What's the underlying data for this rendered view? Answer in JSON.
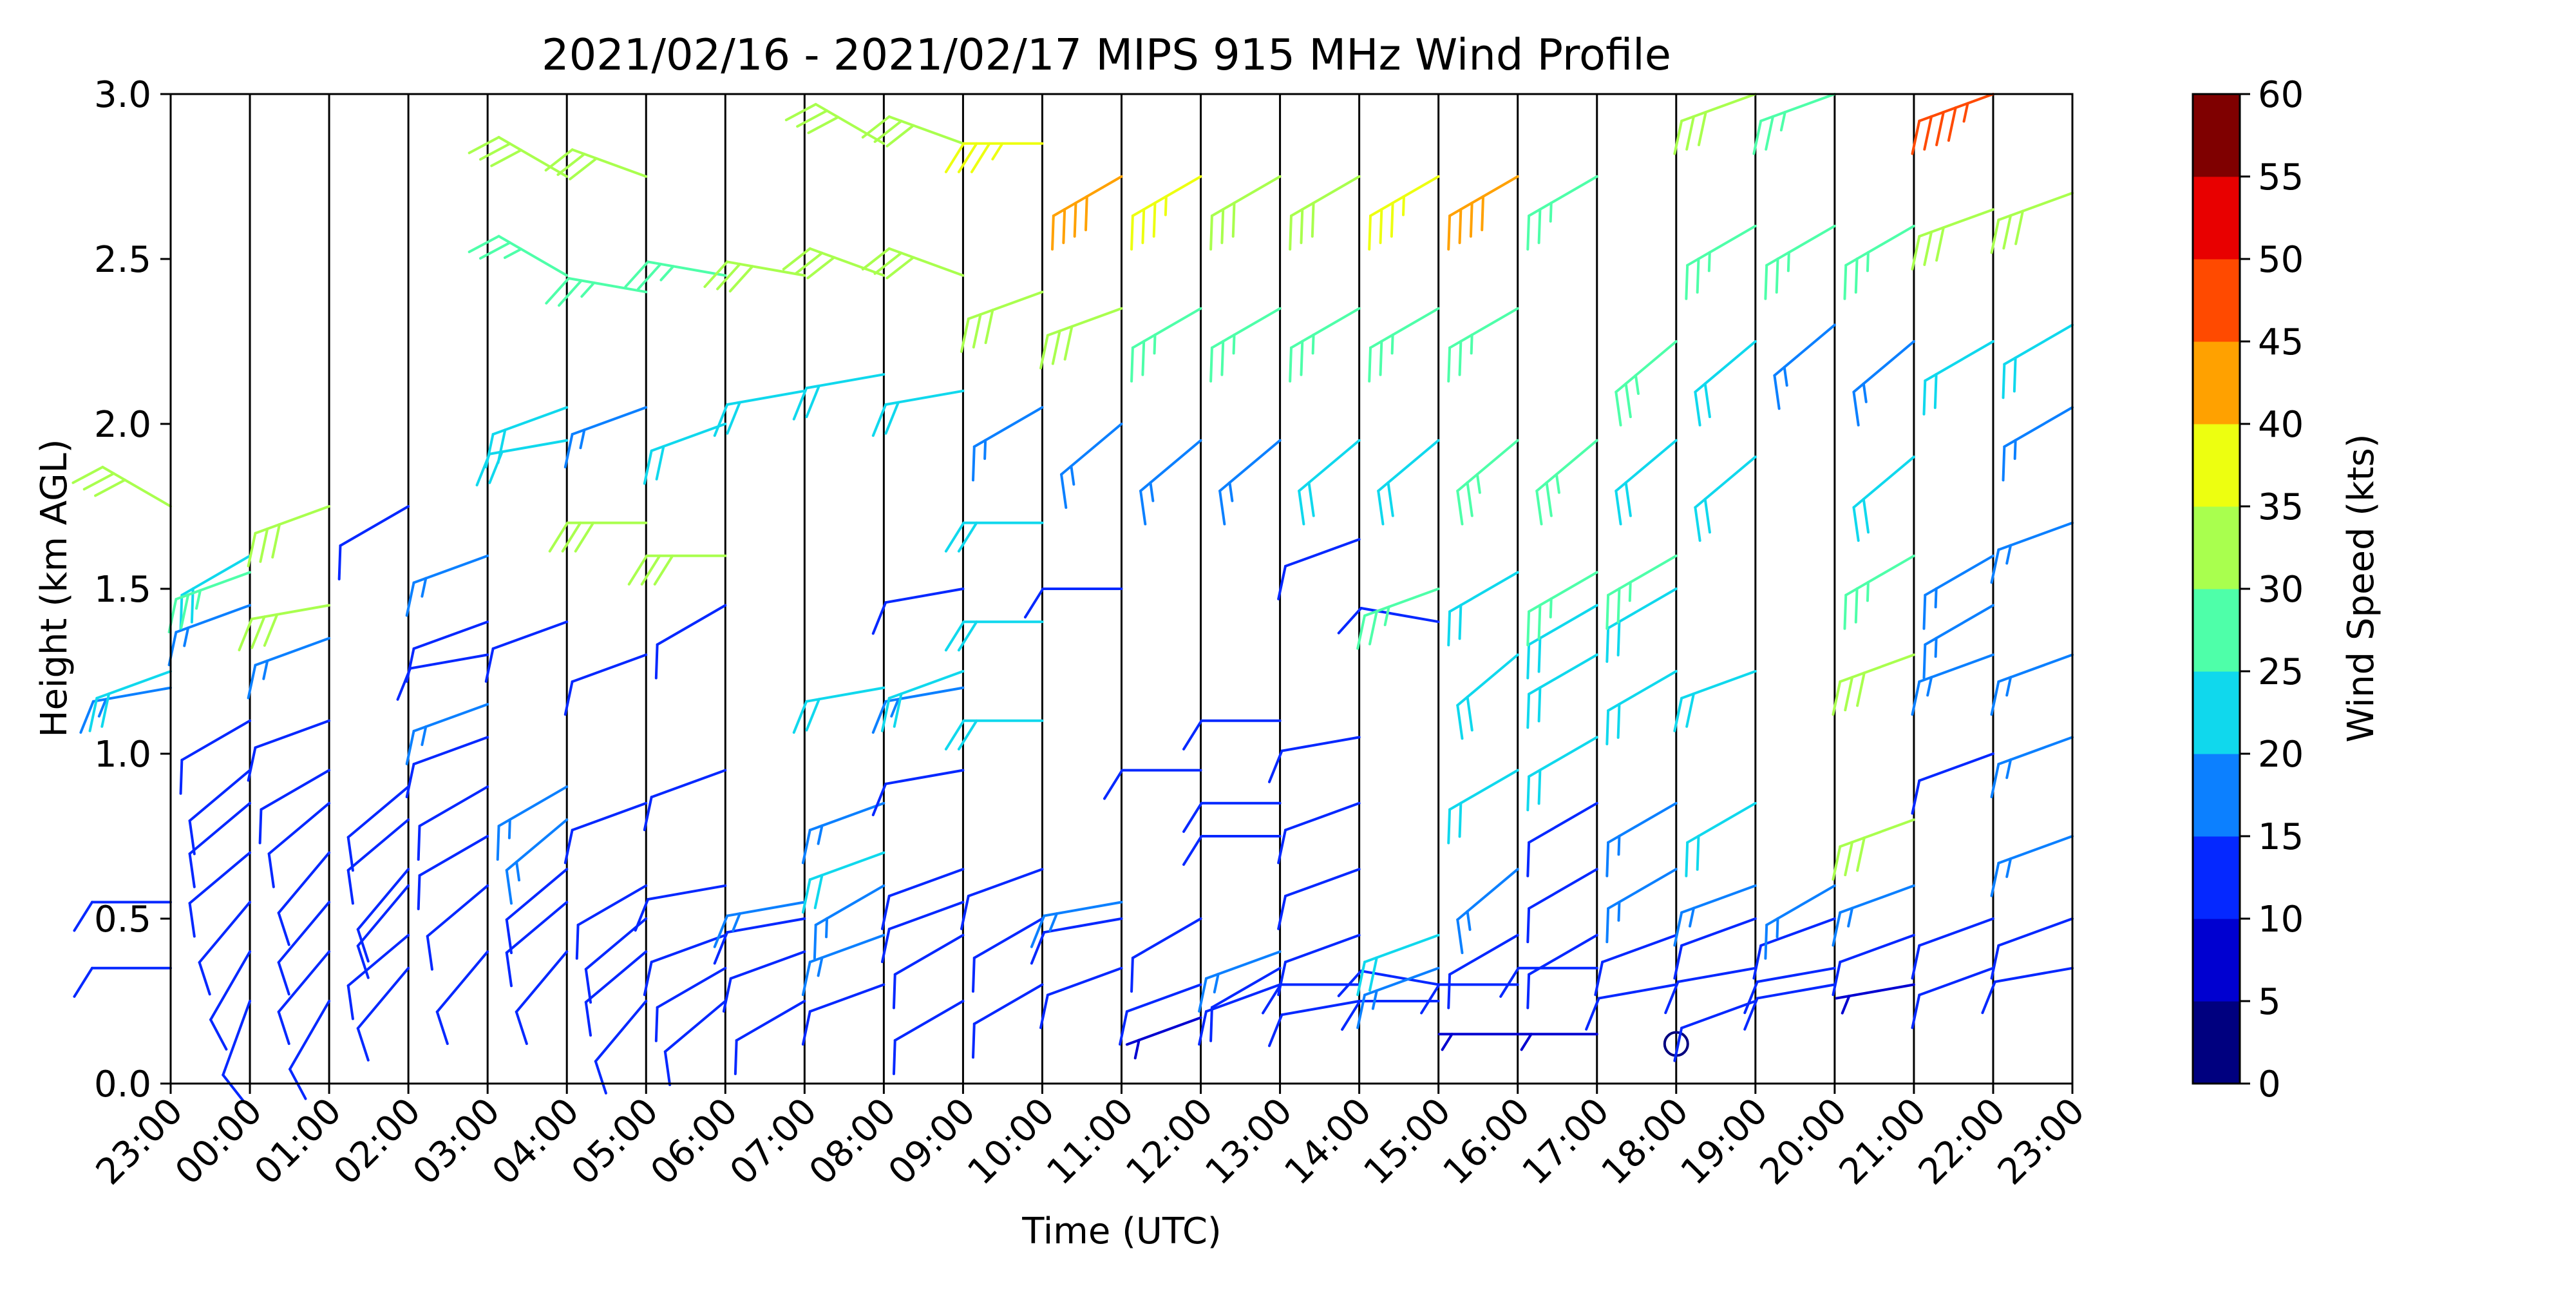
{
  "chart_data": {
    "type": "wind-barb-profile",
    "title": "2021/02/16 - 2021/02/17 MIPS 915 MHz Wind Profile",
    "xlabel": "Time (UTC)",
    "ylabel": "Height (km AGL)",
    "x_ticks": [
      "23:00",
      "00:00",
      "01:00",
      "02:00",
      "03:00",
      "04:00",
      "05:00",
      "06:00",
      "07:00",
      "08:00",
      "09:00",
      "10:00",
      "11:00",
      "12:00",
      "13:00",
      "14:00",
      "15:00",
      "16:00",
      "17:00",
      "18:00",
      "19:00",
      "20:00",
      "21:00",
      "22:00",
      "23:00"
    ],
    "y_ticks": [
      "0.0",
      "0.5",
      "1.0",
      "1.5",
      "2.0",
      "2.5",
      "3.0"
    ],
    "ylim": [
      0,
      3
    ],
    "colorbar": {
      "label": "Wind Speed (kts)",
      "ticks": [
        "0",
        "5",
        "10",
        "15",
        "20",
        "25",
        "30",
        "35",
        "40",
        "45",
        "50",
        "55",
        "60"
      ],
      "colors": [
        "#00007f",
        "#0000d0",
        "#0528ff",
        "#0c80ff",
        "#10d8ed",
        "#4effa9",
        "#a9ff4e",
        "#edff10",
        "#ffa100",
        "#ff4a00",
        "#e80000",
        "#7f0000"
      ]
    },
    "profiles": [
      {
        "t": 0,
        "obs": [
          [
            0.35,
            270,
            10
          ],
          [
            0.55,
            270,
            10
          ],
          [
            1.2,
            260,
            15
          ],
          [
            1.25,
            250,
            20
          ],
          [
            1.75,
            300,
            30
          ]
        ]
      },
      {
        "t": 1,
        "obs": [
          [
            0.25,
            200,
            10
          ],
          [
            0.4,
            210,
            10
          ],
          [
            0.55,
            220,
            10
          ],
          [
            0.7,
            230,
            10
          ],
          [
            0.85,
            230,
            10
          ],
          [
            0.95,
            230,
            10
          ],
          [
            1.1,
            240,
            10
          ],
          [
            1.45,
            250,
            15
          ],
          [
            1.6,
            240,
            20
          ],
          [
            1.55,
            250,
            25
          ]
        ]
      },
      {
        "t": 2,
        "obs": [
          [
            0.25,
            210,
            10
          ],
          [
            0.4,
            220,
            10
          ],
          [
            0.55,
            220,
            10
          ],
          [
            0.7,
            220,
            10
          ],
          [
            0.85,
            230,
            10
          ],
          [
            0.95,
            240,
            10
          ],
          [
            1.1,
            250,
            10
          ],
          [
            1.35,
            250,
            15
          ],
          [
            1.45,
            260,
            30
          ],
          [
            1.75,
            250,
            30
          ]
        ]
      },
      {
        "t": 3,
        "obs": [
          [
            0.35,
            220,
            10
          ],
          [
            0.45,
            230,
            10
          ],
          [
            0.6,
            220,
            10
          ],
          [
            0.65,
            220,
            10
          ],
          [
            0.8,
            230,
            10
          ],
          [
            0.9,
            230,
            10
          ],
          [
            1.75,
            240,
            10
          ]
        ]
      },
      {
        "t": 4,
        "obs": [
          [
            0.4,
            220,
            10
          ],
          [
            0.6,
            230,
            10
          ],
          [
            0.75,
            240,
            10
          ],
          [
            0.9,
            240,
            10
          ],
          [
            1.05,
            250,
            10
          ],
          [
            1.15,
            250,
            15
          ],
          [
            1.3,
            260,
            10
          ],
          [
            1.4,
            250,
            10
          ],
          [
            1.6,
            250,
            15
          ]
        ]
      },
      {
        "t": 5,
        "obs": [
          [
            0.4,
            220,
            10
          ],
          [
            0.55,
            230,
            10
          ],
          [
            0.65,
            230,
            10
          ],
          [
            0.8,
            230,
            15
          ],
          [
            0.9,
            240,
            15
          ],
          [
            1.4,
            250,
            10
          ],
          [
            1.95,
            260,
            20
          ],
          [
            2.05,
            250,
            20
          ],
          [
            2.45,
            300,
            25
          ],
          [
            2.75,
            300,
            30
          ]
        ]
      },
      {
        "t": 6,
        "obs": [
          [
            0.25,
            220,
            10
          ],
          [
            0.4,
            230,
            10
          ],
          [
            0.5,
            230,
            10
          ],
          [
            0.6,
            240,
            10
          ],
          [
            0.85,
            250,
            10
          ],
          [
            1.3,
            250,
            10
          ],
          [
            1.7,
            270,
            30
          ],
          [
            2.05,
            250,
            15
          ],
          [
            2.4,
            280,
            25
          ],
          [
            2.75,
            290,
            30
          ]
        ]
      },
      {
        "t": 7,
        "obs": [
          [
            0.25,
            230,
            10
          ],
          [
            0.35,
            240,
            10
          ],
          [
            0.45,
            250,
            10
          ],
          [
            0.6,
            260,
            10
          ],
          [
            0.95,
            250,
            10
          ],
          [
            1.45,
            240,
            10
          ],
          [
            1.6,
            270,
            30
          ],
          [
            2.0,
            250,
            20
          ],
          [
            2.45,
            280,
            25
          ]
        ]
      },
      {
        "t": 8,
        "obs": [
          [
            0.25,
            240,
            10
          ],
          [
            0.4,
            250,
            10
          ],
          [
            0.5,
            260,
            10
          ],
          [
            0.55,
            260,
            15
          ],
          [
            2.1,
            260,
            20
          ],
          [
            2.45,
            280,
            30
          ]
        ]
      },
      {
        "t": 9,
        "obs": [
          [
            0.3,
            250,
            10
          ],
          [
            0.45,
            250,
            15
          ],
          [
            0.6,
            240,
            15
          ],
          [
            0.7,
            250,
            20
          ],
          [
            0.85,
            250,
            15
          ],
          [
            1.2,
            260,
            20
          ],
          [
            2.15,
            260,
            20
          ],
          [
            2.45,
            290,
            30
          ],
          [
            2.85,
            300,
            30
          ]
        ]
      },
      {
        "t": 10,
        "obs": [
          [
            0.25,
            240,
            10
          ],
          [
            0.45,
            240,
            10
          ],
          [
            0.55,
            250,
            10
          ],
          [
            0.65,
            250,
            10
          ],
          [
            0.95,
            260,
            10
          ],
          [
            1.2,
            260,
            15
          ],
          [
            1.25,
            250,
            20
          ],
          [
            1.5,
            260,
            10
          ],
          [
            2.1,
            260,
            20
          ],
          [
            2.45,
            290,
            30
          ],
          [
            2.85,
            290,
            30
          ]
        ]
      },
      {
        "t": 11,
        "obs": [
          [
            0.3,
            240,
            10
          ],
          [
            0.5,
            240,
            10
          ],
          [
            0.65,
            250,
            10
          ],
          [
            1.1,
            270,
            20
          ],
          [
            1.4,
            270,
            20
          ],
          [
            1.7,
            270,
            20
          ],
          [
            2.05,
            240,
            15
          ],
          [
            2.4,
            250,
            30
          ],
          [
            2.85,
            270,
            35
          ]
        ]
      },
      {
        "t": 12,
        "obs": [
          [
            0.35,
            250,
            10
          ],
          [
            0.5,
            260,
            10
          ],
          [
            0.55,
            260,
            15
          ],
          [
            1.5,
            270,
            10
          ],
          [
            2.0,
            230,
            15
          ],
          [
            2.35,
            250,
            30
          ],
          [
            2.75,
            240,
            40
          ]
        ]
      },
      {
        "t": 13,
        "obs": [
          [
            0.2,
            250,
            5
          ],
          [
            0.3,
            250,
            10
          ],
          [
            0.5,
            240,
            10
          ],
          [
            0.95,
            270,
            10
          ],
          [
            1.95,
            230,
            15
          ],
          [
            2.35,
            240,
            25
          ],
          [
            2.75,
            240,
            35
          ]
        ]
      },
      {
        "t": 14,
        "obs": [
          [
            0.3,
            250,
            10
          ],
          [
            0.35,
            240,
            10
          ],
          [
            0.4,
            250,
            15
          ],
          [
            0.75,
            270,
            10
          ],
          [
            0.85,
            270,
            10
          ],
          [
            1.1,
            270,
            10
          ],
          [
            1.95,
            230,
            15
          ],
          [
            2.35,
            240,
            25
          ],
          [
            2.75,
            240,
            30
          ]
        ]
      },
      {
        "t": 15,
        "obs": [
          [
            0.25,
            260,
            10
          ],
          [
            0.3,
            270,
            10
          ],
          [
            0.45,
            250,
            10
          ],
          [
            0.65,
            250,
            10
          ],
          [
            0.85,
            250,
            10
          ],
          [
            1.05,
            260,
            10
          ],
          [
            1.65,
            250,
            10
          ],
          [
            1.95,
            230,
            20
          ],
          [
            2.35,
            240,
            25
          ],
          [
            2.75,
            240,
            30
          ]
        ]
      },
      {
        "t": 16,
        "obs": [
          [
            0.25,
            270,
            10
          ],
          [
            0.3,
            280,
            10
          ],
          [
            0.35,
            250,
            15
          ],
          [
            0.45,
            250,
            20
          ],
          [
            1.4,
            280,
            10
          ],
          [
            1.5,
            250,
            25
          ],
          [
            1.95,
            230,
            20
          ],
          [
            2.35,
            240,
            25
          ],
          [
            2.75,
            240,
            35
          ]
        ]
      },
      {
        "t": 17,
        "obs": [
          [
            0.15,
            270,
            5
          ],
          [
            0.3,
            270,
            10
          ],
          [
            0.45,
            240,
            10
          ],
          [
            0.65,
            230,
            15
          ],
          [
            0.95,
            240,
            20
          ],
          [
            1.3,
            230,
            20
          ],
          [
            1.55,
            240,
            20
          ],
          [
            1.95,
            230,
            25
          ],
          [
            2.35,
            240,
            25
          ],
          [
            2.75,
            240,
            40
          ]
        ]
      },
      {
        "t": 18,
        "obs": [
          [
            0.15,
            270,
            5
          ],
          [
            0.35,
            270,
            10
          ],
          [
            0.45,
            240,
            10
          ],
          [
            0.65,
            240,
            10
          ],
          [
            0.85,
            240,
            10
          ],
          [
            1.05,
            240,
            20
          ],
          [
            1.3,
            240,
            20
          ],
          [
            1.45,
            240,
            20
          ],
          [
            1.55,
            240,
            25
          ],
          [
            1.95,
            230,
            25
          ],
          [
            2.75,
            240,
            25
          ]
        ]
      },
      {
        "t": 19,
        "obs": [
          [
            0.12,
            0,
            0
          ],
          [
            0.3,
            260,
            10
          ],
          [
            0.45,
            250,
            10
          ],
          [
            0.65,
            240,
            15
          ],
          [
            0.85,
            240,
            15
          ],
          [
            1.25,
            240,
            20
          ],
          [
            1.5,
            240,
            20
          ],
          [
            1.6,
            240,
            25
          ],
          [
            1.95,
            230,
            20
          ],
          [
            2.25,
            230,
            25
          ]
        ]
      },
      {
        "t": 20,
        "obs": [
          [
            0.25,
            250,
            10
          ],
          [
            0.35,
            260,
            10
          ],
          [
            0.5,
            250,
            10
          ],
          [
            0.6,
            250,
            15
          ],
          [
            0.85,
            240,
            20
          ],
          [
            1.25,
            250,
            20
          ],
          [
            1.9,
            230,
            20
          ],
          [
            2.25,
            230,
            20
          ],
          [
            2.6,
            240,
            25
          ],
          [
            3.0,
            250,
            30
          ]
        ]
      },
      {
        "t": 21,
        "obs": [
          [
            0.3,
            260,
            10
          ],
          [
            0.35,
            260,
            10
          ],
          [
            0.5,
            250,
            10
          ],
          [
            0.6,
            240,
            15
          ],
          [
            2.3,
            230,
            15
          ],
          [
            2.6,
            240,
            25
          ],
          [
            3.0,
            250,
            25
          ]
        ]
      },
      {
        "t": 22,
        "obs": [
          [
            0.3,
            260,
            5
          ],
          [
            0.45,
            250,
            10
          ],
          [
            0.6,
            250,
            15
          ],
          [
            0.8,
            250,
            30
          ],
          [
            1.3,
            250,
            30
          ],
          [
            1.6,
            240,
            25
          ],
          [
            1.9,
            230,
            20
          ],
          [
            2.25,
            230,
            15
          ],
          [
            2.6,
            240,
            25
          ]
        ]
      },
      {
        "t": 23,
        "obs": [
          [
            0.35,
            250,
            10
          ],
          [
            0.5,
            250,
            10
          ],
          [
            1.0,
            250,
            10
          ],
          [
            1.3,
            250,
            15
          ],
          [
            1.45,
            240,
            15
          ],
          [
            1.6,
            240,
            15
          ],
          [
            2.25,
            240,
            20
          ],
          [
            2.65,
            250,
            30
          ],
          [
            3.0,
            250,
            45
          ]
        ]
      },
      {
        "t": 24,
        "obs": [
          [
            0.35,
            260,
            10
          ],
          [
            0.5,
            250,
            10
          ],
          [
            0.75,
            250,
            15
          ],
          [
            1.05,
            250,
            15
          ],
          [
            1.3,
            250,
            15
          ],
          [
            1.7,
            250,
            15
          ],
          [
            2.05,
            240,
            15
          ],
          [
            2.3,
            240,
            20
          ],
          [
            2.7,
            250,
            30
          ]
        ]
      }
    ]
  }
}
